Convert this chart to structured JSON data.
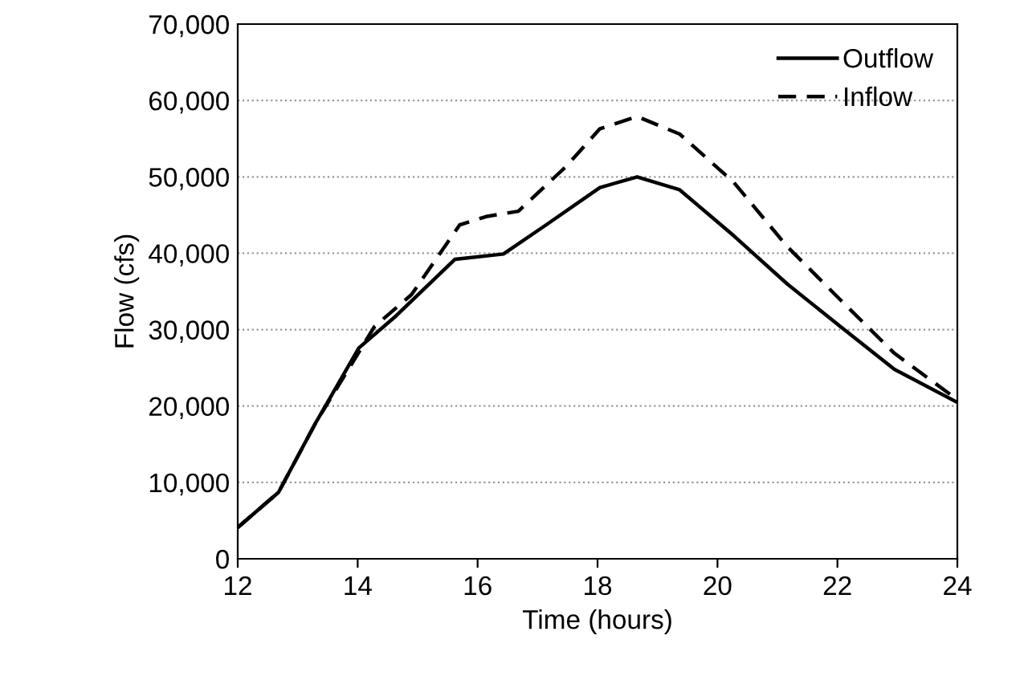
{
  "chart_data": {
    "type": "line",
    "xlabel": "Time (hours)",
    "ylabel": "Flow (cfs)",
    "xlim": [
      12,
      24
    ],
    "xticks": [
      12,
      14,
      16,
      18,
      20,
      22,
      24
    ],
    "ylim": [
      0,
      70000
    ],
    "yticks": [
      {
        "value": 0,
        "label": "0"
      },
      {
        "value": 10000,
        "label": "10,000"
      },
      {
        "value": 20000,
        "label": "20,000"
      },
      {
        "value": 30000,
        "label": "30,000"
      },
      {
        "value": 40000,
        "label": "40,000"
      },
      {
        "value": 50000,
        "label": "50,000"
      },
      {
        "value": 60000,
        "label": "60,000"
      },
      {
        "value": 70000,
        "label": "70,000"
      }
    ],
    "grid": "y",
    "legend": "top right",
    "series": [
      {
        "name": "Outflow",
        "color": "#000000",
        "line_style": "solid",
        "x": [
          12,
          12.68,
          13.3,
          14.02,
          14.64,
          15.62,
          16.43,
          17.14,
          18.04,
          18.66,
          19.37,
          20.27,
          21.16,
          22.05,
          22.95,
          23.97
        ],
        "values": [
          4100,
          8700,
          17800,
          27600,
          31800,
          39200,
          39900,
          43700,
          48600,
          50000,
          48300,
          42300,
          36000,
          30400,
          24800,
          20600
        ]
      },
      {
        "name": "Inflow",
        "color": "#000000",
        "line_style": "dashed",
        "x": [
          12,
          12.68,
          13.3,
          14.28,
          14.9,
          15.7,
          16.14,
          16.68,
          17.48,
          18.04,
          18.66,
          19.37,
          20.27,
          21.16,
          22.05,
          22.95,
          23.97
        ],
        "values": [
          4100,
          8700,
          17800,
          30400,
          34600,
          43700,
          44800,
          45500,
          51400,
          56300,
          57900,
          55600,
          49300,
          40900,
          33900,
          26900,
          21000
        ]
      }
    ]
  }
}
